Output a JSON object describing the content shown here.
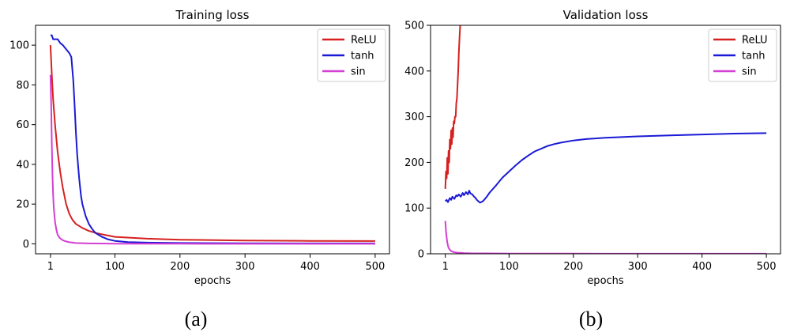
{
  "figure": {
    "captions": [
      "(a)",
      "(b)"
    ]
  },
  "chart_data": [
    {
      "type": "line",
      "title": "Training loss",
      "xlabel": "epochs",
      "ylabel": "",
      "xlim": [
        -22,
        522
      ],
      "ylim": [
        -5,
        110
      ],
      "xticks": [
        1,
        100,
        200,
        300,
        400,
        500
      ],
      "xtick_labels": [
        "1",
        "100",
        "200",
        "300",
        "400",
        "500"
      ],
      "yticks": [
        0,
        20,
        40,
        60,
        80,
        100
      ],
      "ytick_labels": [
        "0",
        "20",
        "40",
        "60",
        "80",
        "100"
      ],
      "grid": false,
      "legend_position": "top-right",
      "series": [
        {
          "name": "ReLU",
          "color": "#d62020",
          "x": [
            1,
            3,
            5,
            8,
            12,
            16,
            20,
            25,
            30,
            35,
            40,
            50,
            60,
            70,
            80,
            100,
            150,
            200,
            300,
            400,
            500
          ],
          "y": [
            100,
            85,
            73,
            60,
            46,
            36,
            28,
            20,
            15,
            12,
            10,
            8,
            6.5,
            5.5,
            4.8,
            3.5,
            2.6,
            2.1,
            1.7,
            1.5,
            1.4
          ]
        },
        {
          "name": "tanh",
          "color": "#1a1ad6",
          "x": [
            1,
            3,
            5,
            8,
            12,
            16,
            20,
            25,
            30,
            33,
            36,
            38,
            40,
            42,
            45,
            48,
            50,
            55,
            60,
            65,
            70,
            80,
            90,
            100,
            120,
            150,
            200,
            300,
            400,
            500
          ],
          "y": [
            105,
            105,
            103,
            103,
            103,
            101,
            100,
            98,
            96,
            94,
            82,
            70,
            56,
            45,
            33,
            24,
            20,
            14,
            10,
            7.5,
            5.5,
            3.5,
            2.2,
            1.5,
            0.9,
            0.6,
            0.4,
            0.3,
            0.2,
            0.2
          ]
        },
        {
          "name": "sin",
          "color": "#d43fd4",
          "x": [
            1,
            2,
            3,
            4,
            5,
            6,
            8,
            10,
            12,
            15,
            20,
            25,
            30,
            40,
            60,
            100,
            200,
            300,
            400,
            500
          ],
          "y": [
            85,
            70,
            50,
            35,
            25,
            18,
            11,
            7,
            4.5,
            3,
            1.8,
            1.2,
            0.8,
            0.4,
            0.2,
            0.1,
            0.05,
            0.03,
            0.02,
            0.02
          ]
        }
      ]
    },
    {
      "type": "line",
      "title": "Validation loss",
      "xlabel": "epochs",
      "ylabel": "",
      "xlim": [
        -22,
        522
      ],
      "ylim": [
        0,
        500
      ],
      "xticks": [
        1,
        100,
        200,
        300,
        400,
        500
      ],
      "xtick_labels": [
        "1",
        "100",
        "200",
        "300",
        "400",
        "500"
      ],
      "yticks": [
        0,
        100,
        200,
        300,
        400,
        500
      ],
      "ytick_labels": [
        "0",
        "100",
        "200",
        "300",
        "400",
        "500"
      ],
      "grid": false,
      "legend_position": "top-right",
      "series": [
        {
          "name": "ReLU",
          "color": "#d62020",
          "x": [
            1,
            2,
            3,
            4,
            5,
            6,
            7,
            8,
            9,
            10,
            11,
            12,
            13,
            14,
            15,
            16,
            17,
            18,
            19,
            20,
            21,
            22,
            23,
            24
          ],
          "y": [
            142,
            180,
            165,
            210,
            175,
            225,
            200,
            250,
            230,
            270,
            240,
            275,
            255,
            290,
            285,
            300,
            300,
            330,
            340,
            370,
            400,
            440,
            470,
            500
          ]
        },
        {
          "name": "tanh",
          "color": "#1a1ad6",
          "x": [
            1,
            3,
            5,
            8,
            10,
            12,
            15,
            18,
            20,
            22,
            25,
            28,
            30,
            33,
            36,
            38,
            40,
            43,
            45,
            48,
            50,
            53,
            55,
            58,
            60,
            65,
            70,
            80,
            90,
            100,
            110,
            120,
            130,
            140,
            150,
            160,
            170,
            180,
            200,
            220,
            250,
            300,
            350,
            400,
            450,
            500
          ],
          "y": [
            115,
            118,
            113,
            122,
            118,
            125,
            120,
            128,
            126,
            130,
            125,
            133,
            128,
            135,
            130,
            138,
            132,
            130,
            126,
            122,
            118,
            114,
            112,
            114,
            116,
            124,
            134,
            150,
            167,
            180,
            193,
            205,
            215,
            224,
            230,
            236,
            240,
            243,
            248,
            251,
            254,
            257,
            259,
            261,
            263,
            264
          ]
        },
        {
          "name": "sin",
          "color": "#d43fd4",
          "x": [
            1,
            2,
            3,
            4,
            5,
            6,
            8,
            10,
            12,
            15,
            20,
            25,
            30,
            40,
            60,
            100,
            200,
            300,
            400,
            500
          ],
          "y": [
            72,
            50,
            35,
            25,
            18,
            13,
            9,
            6,
            4.5,
            3.5,
            2.5,
            2,
            1.5,
            1,
            0.8,
            0.5,
            0.3,
            0.2,
            0.2,
            0.2
          ]
        }
      ]
    }
  ]
}
